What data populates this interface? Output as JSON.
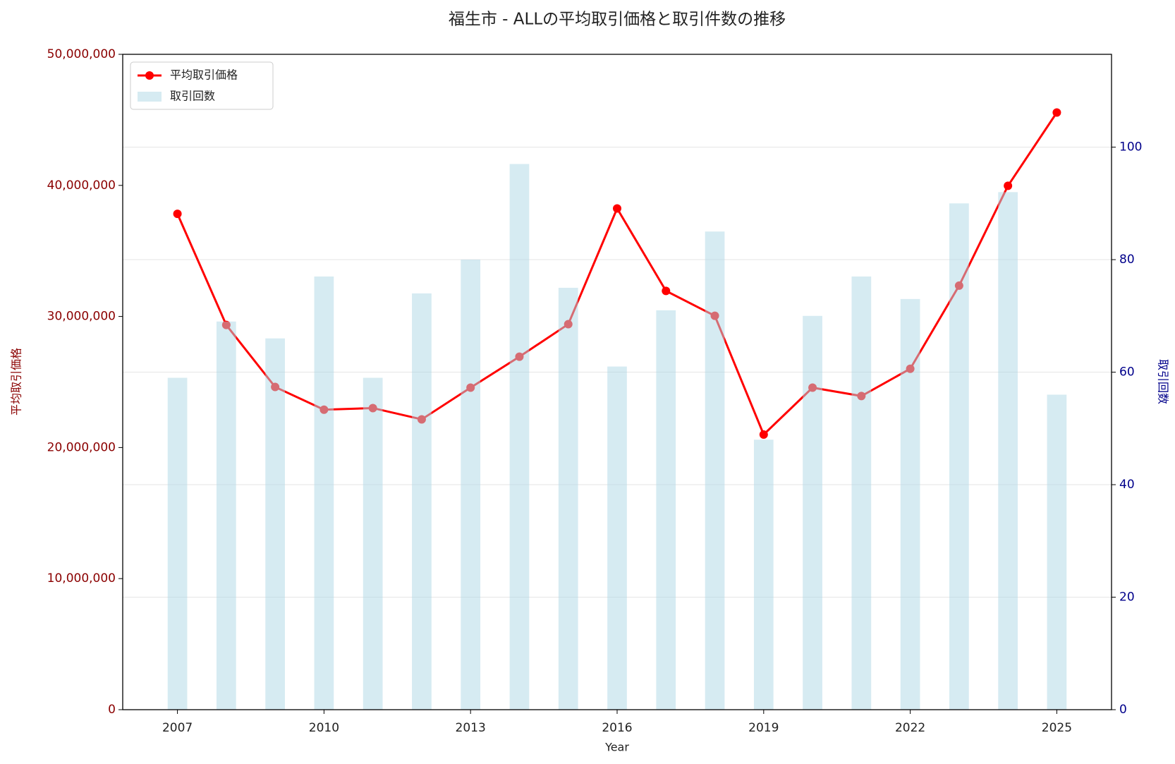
{
  "chart_data": {
    "type": "line",
    "title": "福生市 - ALLの平均取引価格と取引件数の推移",
    "x_label": "Year",
    "y_label": "平均取引価格",
    "y2_label": "取引回数",
    "x": [
      2007,
      2008,
      2009,
      2010,
      2011,
      2012,
      2013,
      2014,
      2015,
      2016,
      2017,
      2018,
      2019,
      2020,
      2021,
      2022,
      2023,
      2024,
      2025
    ],
    "series": [
      {
        "name": "平均取引価格",
        "type": "line",
        "color": "#ff0000",
        "values": [
          37830000,
          29350000,
          24620000,
          22890000,
          23010000,
          22150000,
          24570000,
          26930000,
          29410000,
          38240000,
          31950000,
          30050000,
          20990000,
          24570000,
          23930000,
          26010000,
          32350000,
          39970000,
          45560000
        ]
      },
      {
        "name": "取引回数",
        "type": "bar",
        "axis": "y2",
        "color": "#add8e6",
        "values": [
          59,
          69,
          66,
          77,
          59,
          74,
          80,
          97,
          75,
          61,
          71,
          85,
          48,
          70,
          77,
          73,
          90,
          92,
          56
        ]
      }
    ],
    "xlim": [
      2005.88,
      2026.12
    ],
    "xticks": [
      2007,
      2010,
      2013,
      2016,
      2019,
      2022,
      2025
    ],
    "ylim": [
      0,
      50000000
    ],
    "yticks": [
      0,
      {
        "value": 10000000,
        "label": "10,000,000"
      },
      {
        "value": 20000000,
        "label": "20,000,000"
      },
      {
        "value": 30000000,
        "label": "30,000,000"
      },
      {
        "value": 40000000,
        "label": "40,000,000"
      },
      {
        "value": 50000000,
        "label": "50,000,000"
      }
    ],
    "y2lim": [
      0,
      116.5
    ],
    "y2ticks": [
      0,
      20,
      40,
      60,
      80,
      100
    ],
    "y_color": "#8b0000",
    "y2_color": "#00008b",
    "grid": true,
    "legend": "upper-left"
  }
}
